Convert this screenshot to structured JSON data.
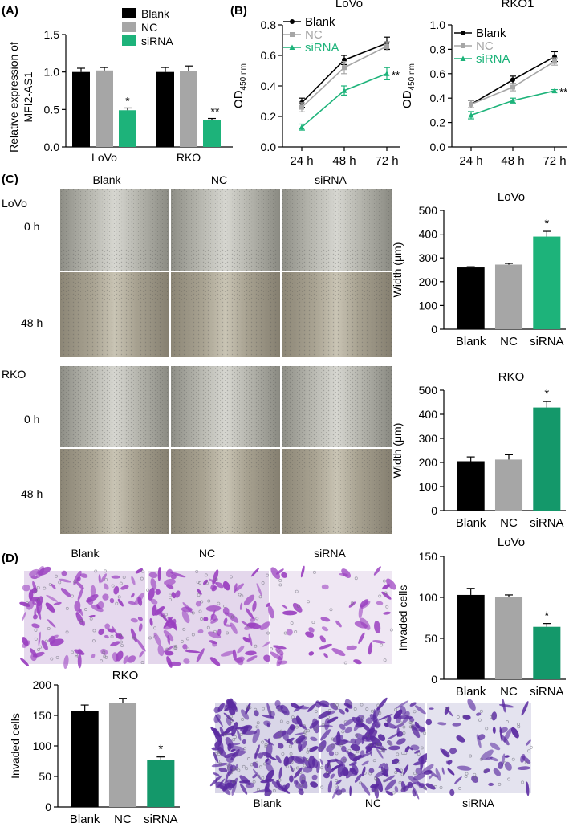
{
  "colors": {
    "blank": "#000000",
    "nc": "#a6a6a6",
    "sirna": "#1db37a",
    "sirna_dark": "#14986a",
    "stain": "#9a3fc0",
    "stain_dark": "#5a2aa0"
  },
  "panels": {
    "A": "(A)",
    "B": "(B)",
    "C": "(C)",
    "D": "(D)"
  },
  "scratch": {
    "col_labels": [
      "Blank",
      "NC",
      "siRNA"
    ],
    "lovo_label": "LoVo",
    "rko_label": "RKO",
    "row_0h": "0 h",
    "row_48h": "48 h"
  },
  "invasion": {
    "top_labels": [
      "Blank",
      "NC",
      "siRNA"
    ],
    "bottom_labels": [
      "Blank",
      "NC",
      "siRNA"
    ]
  },
  "chart_data": [
    {
      "id": "A",
      "type": "bar",
      "title": "",
      "ylabel": "Relative expression of MFI2-AS1",
      "categories": [
        "LoVo",
        "RKO"
      ],
      "ylim": [
        0,
        1.5
      ],
      "yticks": [
        "0.0",
        "0.5",
        "1.0",
        "1.5"
      ],
      "legend": "top-right",
      "series": [
        {
          "name": "Blank",
          "values": [
            1.0,
            1.0
          ],
          "err": [
            0.05,
            0.06
          ]
        },
        {
          "name": "NC",
          "values": [
            1.02,
            1.01
          ],
          "err": [
            0.04,
            0.07
          ]
        },
        {
          "name": "siRNA",
          "values": [
            0.49,
            0.36
          ],
          "err": [
            0.03,
            0.02
          ]
        }
      ],
      "annotations": [
        "*",
        "**"
      ]
    },
    {
      "id": "B1",
      "type": "line",
      "title": "LoVo",
      "ylabel": "OD450 nm",
      "x": [
        "24 h",
        "48 h",
        "72 h"
      ],
      "ylim": [
        0,
        0.8
      ],
      "yticks": [
        "0.0",
        "0.2",
        "0.4",
        "0.6",
        "0.8"
      ],
      "legend": "top-left",
      "series": [
        {
          "name": "Blank",
          "values": [
            0.29,
            0.57,
            0.68
          ],
          "err": [
            0.03,
            0.03,
            0.04
          ]
        },
        {
          "name": "NC",
          "values": [
            0.26,
            0.52,
            0.66
          ],
          "err": [
            0.03,
            0.04,
            0.03
          ]
        },
        {
          "name": "siRNA",
          "values": [
            0.13,
            0.37,
            0.48
          ],
          "err": [
            0.02,
            0.03,
            0.04
          ]
        }
      ],
      "annotations": [
        "**"
      ]
    },
    {
      "id": "B2",
      "type": "line",
      "title": "RKO1",
      "ylabel": "OD450 nm",
      "x": [
        "24 h",
        "48 h",
        "72 h"
      ],
      "ylim": [
        0,
        1.0
      ],
      "yticks": [
        "0.0",
        "0.2",
        "0.4",
        "0.6",
        "0.8",
        "1.0"
      ],
      "legend": "top-left",
      "series": [
        {
          "name": "Blank",
          "values": [
            0.35,
            0.55,
            0.74
          ],
          "err": [
            0.03,
            0.03,
            0.04
          ]
        },
        {
          "name": "NC",
          "values": [
            0.35,
            0.49,
            0.7
          ],
          "err": [
            0.03,
            0.03,
            0.03
          ]
        },
        {
          "name": "siRNA",
          "values": [
            0.26,
            0.38,
            0.46
          ],
          "err": [
            0.03,
            0.02,
            0.01
          ]
        }
      ],
      "annotations": [
        "**"
      ]
    },
    {
      "id": "C1",
      "type": "bar",
      "title": "LoVo",
      "ylabel": "Width (μm)",
      "categories": [
        "Blank",
        "NC",
        "siRNA"
      ],
      "values": [
        260,
        272,
        390
      ],
      "err": [
        3,
        5,
        22
      ],
      "ylim": [
        0,
        500
      ],
      "yticks": [
        "0",
        "100",
        "200",
        "300",
        "400",
        "500"
      ],
      "annotations": [
        "",
        "",
        "*"
      ]
    },
    {
      "id": "C2",
      "type": "bar",
      "title": "RKO",
      "ylabel": "Width (μm)",
      "categories": [
        "Blank",
        "NC",
        "siRNA"
      ],
      "values": [
        205,
        212,
        428
      ],
      "err": [
        18,
        20,
        25
      ],
      "ylim": [
        0,
        500
      ],
      "yticks": [
        "0",
        "100",
        "200",
        "300",
        "400",
        "500"
      ],
      "annotations": [
        "",
        "",
        "*"
      ]
    },
    {
      "id": "D1",
      "type": "bar",
      "title": "LoVo",
      "ylabel": "Invaded cells",
      "categories": [
        "Blank",
        "NC",
        "siRNA"
      ],
      "values": [
        103,
        100,
        64
      ],
      "err": [
        8,
        3,
        4
      ],
      "ylim": [
        0,
        150
      ],
      "yticks": [
        "0",
        "50",
        "100",
        "150"
      ],
      "annotations": [
        "",
        "",
        "*"
      ]
    },
    {
      "id": "D2",
      "type": "bar",
      "title": "RKO",
      "ylabel": "Invaded cells",
      "categories": [
        "Blank",
        "NC",
        "siRNA"
      ],
      "values": [
        157,
        170,
        77
      ],
      "err": [
        10,
        8,
        5
      ],
      "ylim": [
        0,
        200
      ],
      "yticks": [
        "0",
        "50",
        "100",
        "150",
        "200"
      ],
      "annotations": [
        "",
        "",
        "*"
      ]
    }
  ]
}
